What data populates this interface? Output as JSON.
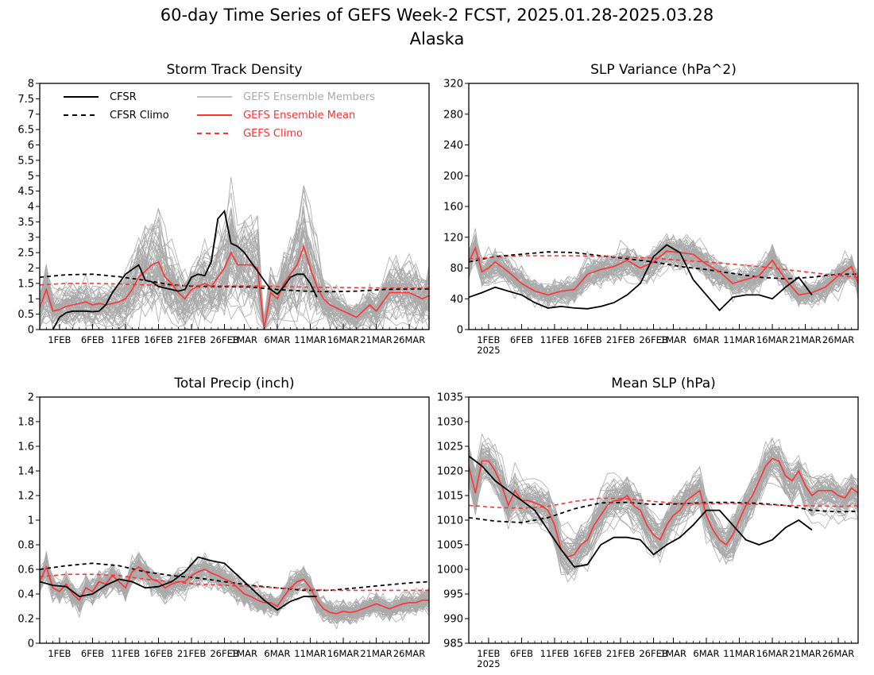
{
  "figure": {
    "title": "60-day Time Series of GEFS Week-2 FCST, 2025.01.28-2025.03.28",
    "subtitle": "Alaska"
  },
  "legend": {
    "cfsr": "CFSR",
    "cfsr_climo": "CFSR Climo",
    "members": "GEFS Ensemble Members",
    "mean": "GEFS Ensemble Mean",
    "gefs_climo": "GEFS Climo"
  },
  "x_axis": {
    "tick_labels": [
      "1FEB",
      "6FEB",
      "11FEB",
      "16FEB",
      "21FEB",
      "26FEB",
      "1MAR",
      "6MAR",
      "11MAR",
      "16MAR",
      "21MAR",
      "26MAR"
    ],
    "tick_days": [
      4,
      9,
      14,
      19,
      24,
      29,
      32,
      37,
      42,
      47,
      52,
      57
    ],
    "year_label": "2025"
  },
  "colors": {
    "cfsr": "#000000",
    "members": "#aaaaaa",
    "mean": "#ff3333",
    "gefs_climo": "#ff3333"
  },
  "chart_data": [
    {
      "type": "line",
      "title": "Storm Track Density",
      "ylim": [
        0,
        8
      ],
      "yticks": [
        "0",
        "0.5",
        "1",
        "1.5",
        "2",
        "2.5",
        "3",
        "3.5",
        "4",
        "4.5",
        "5",
        "5.5",
        "6",
        "6.5",
        "7",
        "7.5",
        "8"
      ],
      "x": "day index 1 = 2025-01-28 ... 60 = 2025-03-28",
      "series": [
        {
          "name": "CFSR",
          "x": [
            3,
            4,
            5,
            6,
            7,
            8,
            9,
            10,
            11,
            12,
            13,
            14,
            15,
            16,
            17,
            18,
            19,
            20,
            21,
            22,
            23,
            24,
            25,
            26,
            27,
            28,
            29,
            30,
            31,
            32,
            33,
            34,
            35,
            36,
            37,
            38,
            39,
            40,
            41,
            42,
            43
          ],
          "values": [
            0,
            0.4,
            0.55,
            0.6,
            0.6,
            0.6,
            0.58,
            0.6,
            0.8,
            1.2,
            1.5,
            1.8,
            1.95,
            2.1,
            1.6,
            1.55,
            1.4,
            1.35,
            1.3,
            1.25,
            1.3,
            1.7,
            1.8,
            1.75,
            2.2,
            3.6,
            3.85,
            2.8,
            2.7,
            2.5,
            2.2,
            1.9,
            1.6,
            1.3,
            1.15,
            1.4,
            1.7,
            1.8,
            1.8,
            1.5,
            1.05
          ]
        },
        {
          "name": "CFSR Climo",
          "x": [
            1,
            5,
            9,
            13,
            17,
            21,
            25,
            29,
            33,
            37,
            41,
            45,
            49,
            53,
            57,
            60
          ],
          "values": [
            1.7,
            1.78,
            1.8,
            1.72,
            1.6,
            1.45,
            1.4,
            1.4,
            1.38,
            1.3,
            1.25,
            1.23,
            1.25,
            1.3,
            1.32,
            1.32
          ]
        },
        {
          "name": "GEFS Ensemble Mean",
          "x": [
            1,
            2,
            3,
            4,
            5,
            6,
            7,
            8,
            9,
            10,
            11,
            12,
            13,
            14,
            15,
            16,
            17,
            18,
            19,
            20,
            21,
            22,
            23,
            24,
            25,
            26,
            27,
            28,
            29,
            30,
            31,
            32,
            33,
            34,
            35,
            36,
            37,
            38,
            39,
            40,
            41,
            42,
            43,
            44,
            45,
            46,
            47,
            48,
            49,
            50,
            51,
            52,
            53,
            54,
            55,
            56,
            57,
            58,
            59,
            60
          ],
          "values": [
            0.7,
            1.3,
            0.6,
            0.65,
            0.75,
            0.8,
            0.85,
            0.9,
            0.8,
            0.85,
            0.8,
            0.85,
            0.9,
            1.0,
            1.3,
            1.7,
            1.9,
            2.1,
            2.2,
            1.7,
            1.5,
            1.2,
            1.0,
            1.3,
            1.4,
            1.5,
            1.4,
            1.7,
            2.0,
            2.5,
            2.1,
            2.1,
            2.1,
            2.0,
            0.02,
            1.2,
            1.0,
            1.5,
            1.8,
            2.1,
            2.7,
            2.0,
            1.4,
            1.0,
            0.8,
            0.7,
            0.6,
            0.5,
            0.4,
            0.6,
            0.8,
            0.6,
            0.9,
            1.2,
            1.2,
            1.2,
            1.2,
            1.1,
            1.0,
            1.1
          ]
        },
        {
          "name": "GEFS Climo",
          "x": [
            1,
            5,
            9,
            13,
            17,
            21,
            25,
            29,
            33,
            37,
            41,
            45,
            49,
            53,
            57,
            60
          ],
          "values": [
            1.45,
            1.5,
            1.5,
            1.48,
            1.45,
            1.43,
            1.43,
            1.42,
            1.42,
            1.4,
            1.38,
            1.37,
            1.36,
            1.35,
            1.35,
            1.35
          ]
        }
      ]
    },
    {
      "type": "line",
      "title": "SLP Variance (hPa^2)",
      "ylim": [
        0,
        320
      ],
      "yticks": [
        "0",
        "40",
        "80",
        "120",
        "160",
        "200",
        "240",
        "280",
        "320"
      ],
      "series": [
        {
          "name": "CFSR",
          "x": [
            1,
            3,
            5,
            7,
            9,
            11,
            13,
            15,
            17,
            19,
            21,
            23,
            25,
            27,
            29,
            31,
            33,
            35,
            37,
            39,
            41,
            43,
            45,
            47,
            49,
            51,
            53
          ],
          "values": [
            42,
            48,
            55,
            50,
            45,
            35,
            28,
            30,
            28,
            27,
            30,
            35,
            45,
            60,
            95,
            110,
            100,
            65,
            45,
            25,
            42,
            45,
            45,
            40,
            55,
            68,
            45
          ]
        },
        {
          "name": "CFSR Climo",
          "x": [
            1,
            5,
            9,
            13,
            17,
            21,
            25,
            29,
            33,
            37,
            41,
            45,
            49,
            53,
            57,
            60
          ],
          "values": [
            88,
            95,
            98,
            101,
            100,
            96,
            92,
            88,
            82,
            78,
            73,
            68,
            66,
            68,
            72,
            72
          ]
        },
        {
          "name": "GEFS Ensemble Mean",
          "x": [
            1,
            2,
            3,
            4,
            5,
            7,
            9,
            11,
            13,
            15,
            17,
            19,
            21,
            23,
            25,
            27,
            29,
            31,
            33,
            35,
            37,
            39,
            41,
            43,
            45,
            47,
            49,
            51,
            53,
            55,
            57,
            59,
            60
          ],
          "values": [
            88,
            106,
            75,
            80,
            88,
            75,
            60,
            50,
            45,
            50,
            52,
            72,
            78,
            82,
            90,
            80,
            88,
            102,
            100,
            98,
            85,
            75,
            60,
            65,
            70,
            90,
            65,
            45,
            48,
            55,
            70,
            82,
            60
          ]
        },
        {
          "name": "GEFS Climo",
          "x": [
            1,
            5,
            9,
            13,
            17,
            21,
            25,
            29,
            33,
            37,
            41,
            45,
            49,
            53,
            57,
            60
          ],
          "values": [
            92,
            94,
            96,
            96,
            96,
            95,
            94,
            93,
            90,
            88,
            85,
            82,
            78,
            74,
            70,
            68
          ]
        }
      ]
    },
    {
      "type": "line",
      "title": "Total Precip (inch)",
      "ylim": [
        0,
        2
      ],
      "yticks": [
        "0",
        "0.2",
        "0.4",
        "0.6",
        "0.8",
        "1",
        "1.2",
        "1.4",
        "1.6",
        "1.8",
        "2"
      ],
      "series": [
        {
          "name": "CFSR",
          "x": [
            1,
            3,
            5,
            7,
            9,
            11,
            13,
            15,
            17,
            19,
            21,
            23,
            25,
            27,
            29,
            31,
            33,
            35,
            37,
            39,
            41,
            43
          ],
          "values": [
            0.5,
            0.47,
            0.46,
            0.38,
            0.4,
            0.47,
            0.52,
            0.5,
            0.45,
            0.46,
            0.5,
            0.58,
            0.7,
            0.67,
            0.65,
            0.55,
            0.45,
            0.35,
            0.27,
            0.34,
            0.38,
            0.38
          ]
        },
        {
          "name": "CFSR Climo",
          "x": [
            1,
            5,
            9,
            13,
            17,
            21,
            25,
            29,
            33,
            37,
            41,
            45,
            49,
            53,
            57,
            60
          ],
          "values": [
            0.6,
            0.63,
            0.65,
            0.63,
            0.58,
            0.55,
            0.53,
            0.5,
            0.47,
            0.45,
            0.43,
            0.43,
            0.45,
            0.47,
            0.49,
            0.5
          ]
        },
        {
          "name": "GEFS Ensemble Mean",
          "x": [
            1,
            2,
            3,
            4,
            5,
            6,
            7,
            8,
            9,
            10,
            11,
            12,
            13,
            14,
            15,
            16,
            17,
            18,
            19,
            20,
            21,
            22,
            23,
            24,
            25,
            26,
            27,
            28,
            29,
            30,
            31,
            32,
            33,
            34,
            35,
            36,
            37,
            38,
            39,
            40,
            41,
            42,
            43,
            44,
            45,
            46,
            47,
            48,
            49,
            50,
            51,
            52,
            53,
            54,
            55,
            56,
            57,
            58,
            59,
            60
          ],
          "values": [
            0.5,
            0.62,
            0.45,
            0.42,
            0.48,
            0.4,
            0.35,
            0.45,
            0.42,
            0.5,
            0.48,
            0.55,
            0.5,
            0.45,
            0.58,
            0.62,
            0.58,
            0.52,
            0.5,
            0.45,
            0.48,
            0.5,
            0.5,
            0.55,
            0.58,
            0.6,
            0.57,
            0.55,
            0.52,
            0.5,
            0.45,
            0.4,
            0.38,
            0.35,
            0.33,
            0.33,
            0.3,
            0.38,
            0.45,
            0.5,
            0.52,
            0.45,
            0.35,
            0.28,
            0.25,
            0.24,
            0.26,
            0.25,
            0.26,
            0.28,
            0.3,
            0.32,
            0.3,
            0.28,
            0.3,
            0.32,
            0.33,
            0.33,
            0.35,
            0.35
          ]
        },
        {
          "name": "GEFS Climo",
          "x": [
            1,
            5,
            9,
            13,
            17,
            21,
            25,
            29,
            33,
            37,
            41,
            45,
            49,
            53,
            57,
            60
          ],
          "values": [
            0.54,
            0.56,
            0.56,
            0.55,
            0.52,
            0.5,
            0.48,
            0.47,
            0.46,
            0.45,
            0.44,
            0.43,
            0.43,
            0.43,
            0.43,
            0.43
          ]
        }
      ]
    },
    {
      "type": "line",
      "title": "Mean SLP (hPa)",
      "ylim": [
        985,
        1035
      ],
      "yticks": [
        "985",
        "990",
        "995",
        "1000",
        "1005",
        "1010",
        "1015",
        "1020",
        "1025",
        "1030",
        "1035"
      ],
      "series": [
        {
          "name": "CFSR",
          "x": [
            1,
            3,
            5,
            7,
            9,
            11,
            13,
            15,
            17,
            19,
            21,
            23,
            25,
            27,
            29,
            31,
            33,
            35,
            37,
            39,
            41,
            43,
            45,
            47,
            49,
            51,
            53
          ],
          "values": [
            1023,
            1021,
            1018,
            1016,
            1014,
            1012,
            1008,
            1004,
            1000.5,
            1001,
            1005,
            1006.5,
            1006.5,
            1006,
            1003,
            1005,
            1006.5,
            1009,
            1012,
            1012,
            1009,
            1006,
            1005,
            1006,
            1008.5,
            1010,
            1008
          ]
        },
        {
          "name": "CFSR Climo",
          "x": [
            1,
            5,
            9,
            13,
            17,
            21,
            25,
            29,
            33,
            37,
            41,
            45,
            49,
            53,
            57,
            60
          ],
          "values": [
            1010.5,
            1009.8,
            1009.5,
            1010.5,
            1012.3,
            1013.5,
            1013.6,
            1013.2,
            1013.3,
            1013.6,
            1013.6,
            1013.4,
            1013,
            1012,
            1011.7,
            1011.8
          ]
        },
        {
          "name": "GEFS Ensemble Mean",
          "x": [
            1,
            2,
            3,
            4,
            5,
            6,
            7,
            8,
            9,
            10,
            11,
            12,
            13,
            14,
            15,
            16,
            17,
            18,
            19,
            20,
            21,
            22,
            23,
            24,
            25,
            26,
            27,
            28,
            29,
            30,
            31,
            32,
            33,
            34,
            35,
            36,
            37,
            38,
            39,
            40,
            41,
            42,
            43,
            44,
            45,
            46,
            47,
            48,
            49,
            50,
            51,
            52,
            53,
            54,
            55,
            56,
            57,
            58,
            59,
            60
          ],
          "values": [
            1021,
            1015.5,
            1022,
            1022,
            1020,
            1017,
            1013,
            1016,
            1014,
            1014,
            1013.5,
            1013,
            1012,
            1009,
            1004,
            1002.5,
            1003,
            1005,
            1006,
            1009,
            1011,
            1013,
            1014,
            1014,
            1015,
            1013,
            1012,
            1009,
            1007,
            1006,
            1009,
            1011,
            1012,
            1014,
            1015,
            1016,
            1011,
            1008,
            1006,
            1005,
            1007,
            1010,
            1013,
            1015,
            1018,
            1021,
            1022.5,
            1022,
            1019,
            1018,
            1020,
            1017,
            1015,
            1016,
            1016,
            1016,
            1015,
            1014.5,
            1016.5,
            1015.5
          ]
        },
        {
          "name": "GEFS Climo",
          "x": [
            1,
            5,
            9,
            13,
            17,
            21,
            25,
            29,
            33,
            37,
            41,
            45,
            49,
            53,
            57,
            60
          ],
          "values": [
            1013,
            1012.6,
            1012.4,
            1012.8,
            1013.8,
            1014.5,
            1014.3,
            1013.8,
            1013.4,
            1013.3,
            1013.4,
            1013.2,
            1013,
            1012.9,
            1012.8,
            1012.9
          ]
        }
      ]
    }
  ]
}
